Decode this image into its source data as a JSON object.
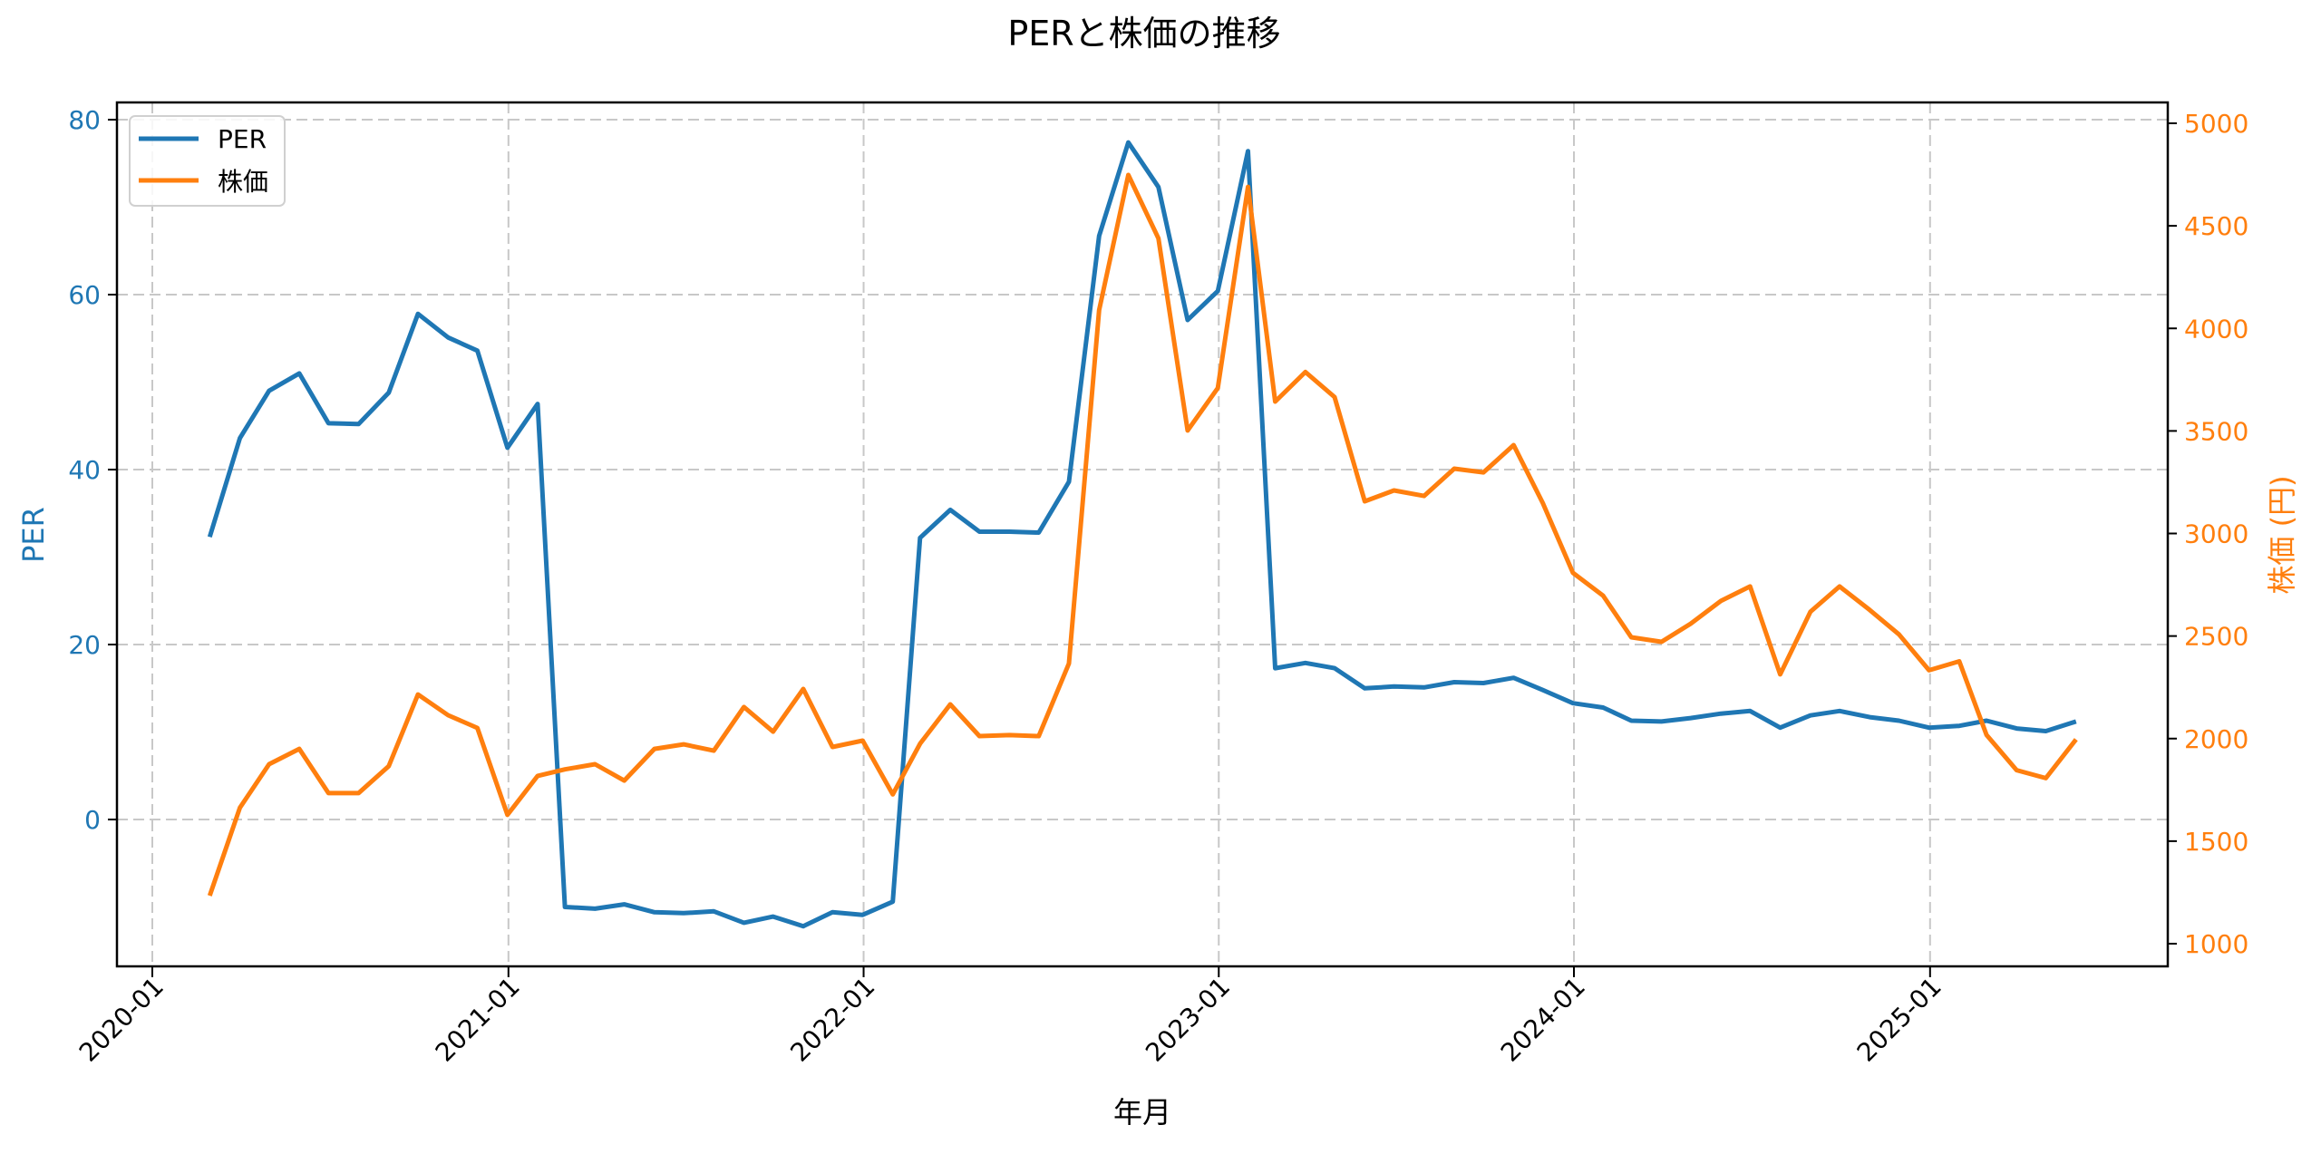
{
  "chart_data": {
    "type": "line",
    "title": "PERと株価の推移",
    "xlabel": "年月",
    "ylabel_left": "PER",
    "ylabel_right": "株価 (円)",
    "ylim_left": [
      -16.5,
      81.8
    ],
    "ylim_right": [
      900,
      5050
    ],
    "yticks_left": [
      0,
      20,
      40,
      60,
      80
    ],
    "yticks_right": [
      1000,
      1500,
      2000,
      2500,
      3000,
      3500,
      4000,
      4500,
      5000
    ],
    "xticks": [
      "2020-01",
      "2021-01",
      "2022-01",
      "2023-01",
      "2024-01",
      "2025-01"
    ],
    "grid": true,
    "legend_position": "upper left",
    "x": [
      "2020-02",
      "2020-03",
      "2020-04",
      "2020-05",
      "2020-06",
      "2020-07",
      "2020-08",
      "2020-09",
      "2020-10",
      "2020-11",
      "2020-12",
      "2021-01",
      "2021-02",
      "2021-03",
      "2021-04",
      "2021-05",
      "2021-06",
      "2021-07",
      "2021-08",
      "2021-09",
      "2021-10",
      "2021-11",
      "2021-12",
      "2022-01",
      "2022-02",
      "2022-03",
      "2022-04",
      "2022-05",
      "2022-06",
      "2022-07",
      "2022-08",
      "2022-09",
      "2022-10",
      "2022-11",
      "2022-12",
      "2023-01",
      "2023-02",
      "2023-03",
      "2023-04",
      "2023-05",
      "2023-06",
      "2023-07",
      "2023-08",
      "2023-09",
      "2023-10",
      "2023-11",
      "2023-12",
      "2024-01",
      "2024-02",
      "2024-03",
      "2024-04",
      "2024-05",
      "2024-06",
      "2024-07",
      "2024-08",
      "2024-09",
      "2024-10",
      "2024-11",
      "2024-12",
      "2025-01",
      "2025-02",
      "2025-03",
      "2025-04",
      "2025-05"
    ],
    "series": [
      {
        "name": "PER",
        "axis": "left",
        "color": "#1f77b4",
        "values": [
          32.3,
          43.6,
          49.0,
          51.0,
          45.3,
          45.2,
          48.8,
          57.8,
          55.1,
          53.6,
          42.5,
          47.5,
          -10.0,
          -10.2,
          -9.7,
          -10.6,
          -10.7,
          -10.5,
          -11.8,
          -11.1,
          -12.2,
          -10.6,
          -10.9,
          -9.4,
          32.2,
          35.4,
          32.9,
          32.9,
          32.8,
          38.6,
          66.7,
          77.4,
          72.3,
          57.1,
          60.4,
          76.4,
          17.3,
          17.9,
          17.3,
          15.0,
          15.2,
          15.1,
          15.7,
          15.6,
          16.2,
          14.8,
          13.3,
          12.8,
          11.3,
          11.2,
          11.6,
          12.1,
          12.4,
          10.5,
          11.9,
          12.4,
          11.7,
          11.3,
          10.5,
          10.7,
          11.3,
          10.4,
          10.1,
          11.2
        ]
      },
      {
        "name": "株価",
        "axis": "right",
        "color": "#ff7f0e",
        "values": [
          1234,
          1663,
          1875,
          1950,
          1734,
          1734,
          1866,
          2215,
          2114,
          2052,
          1628,
          1818,
          1850,
          1875,
          1795,
          1950,
          1972,
          1941,
          2154,
          2034,
          2242,
          1959,
          1990,
          1728,
          1975,
          2167,
          2012,
          2017,
          2012,
          2366,
          4089,
          4748,
          4439,
          3502,
          3709,
          4690,
          3643,
          3787,
          3665,
          3157,
          3210,
          3183,
          3316,
          3298,
          3431,
          3148,
          2808,
          2697,
          2494,
          2472,
          2560,
          2671,
          2742,
          2313,
          2618,
          2742,
          2627,
          2508,
          2333,
          2377,
          2018,
          1846,
          1807,
          1996
        ]
      }
    ]
  },
  "legend": {
    "items": [
      {
        "label": "PER",
        "color": "#1f77b4"
      },
      {
        "label": "株価",
        "color": "#ff7f0e"
      }
    ]
  }
}
